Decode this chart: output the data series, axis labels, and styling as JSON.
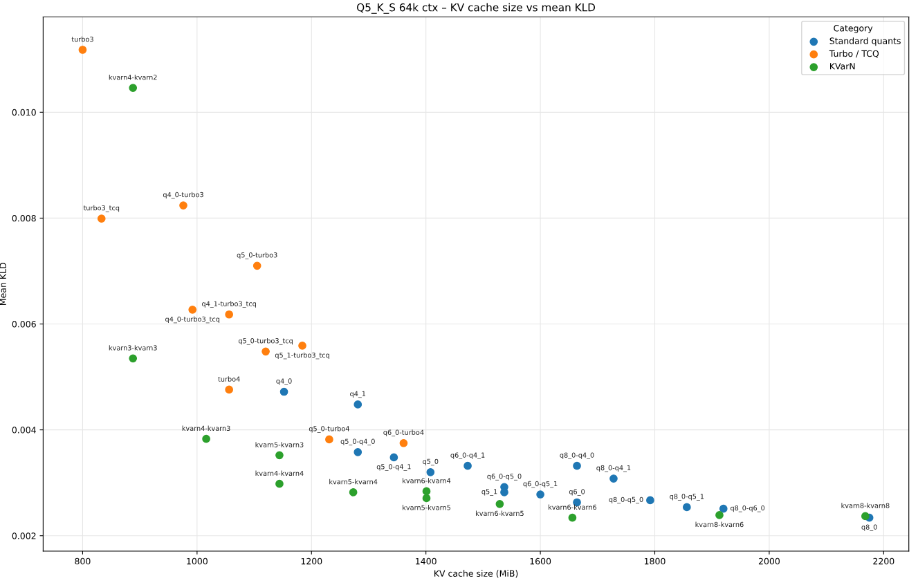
{
  "chart_data": {
    "type": "scatter",
    "title": "Q5_K_S 64k ctx – KV cache size vs mean KLD",
    "xlabel": "KV cache size (MiB)",
    "ylabel": "Mean KLD",
    "legend_title": "Category",
    "legend": "top right",
    "grid": true,
    "marker": "circle",
    "xlim": [
      731,
      2244
    ],
    "xticks": [
      800,
      1000,
      1200,
      1400,
      1600,
      1800,
      2000,
      2200
    ],
    "ylim": [
      0.00171,
      0.0118
    ],
    "yticks": [
      {
        "value": 0.002,
        "label": "0.002"
      },
      {
        "value": 0.004,
        "label": "0.004"
      },
      {
        "value": 0.006,
        "label": "0.006"
      },
      {
        "value": 0.008,
        "label": "0.008"
      },
      {
        "value": 0.01,
        "label": "0.010"
      }
    ],
    "series": [
      {
        "name": "Standard quants",
        "color": "#1f77b4",
        "x": [
          1152,
          1281,
          1281,
          1344,
          1408,
          1473,
          1537,
          1537,
          1600,
          1664,
          1664,
          1728,
          1792,
          1856,
          1920,
          2175
        ],
        "values": [
          0.00472,
          0.00448,
          0.00358,
          0.00348,
          0.0032,
          0.00332,
          0.00292,
          0.00282,
          0.00278,
          0.00332,
          0.00263,
          0.00308,
          0.00267,
          0.00254,
          0.00251,
          0.00234
        ]
      },
      {
        "name": "Turbo / TCQ",
        "color": "#ff7f0e",
        "x": [
          800,
          833,
          976,
          1105,
          992,
          1056,
          1120,
          1184,
          1056,
          1231,
          1361
        ],
        "values": [
          0.01118,
          0.00799,
          0.00824,
          0.0071,
          0.00627,
          0.00618,
          0.00548,
          0.00559,
          0.00476,
          0.00382,
          0.00375
        ]
      },
      {
        "name": "KVarN",
        "color": "#2ca02c",
        "x": [
          888,
          888,
          1016,
          1144,
          1144,
          1273,
          1401,
          1401,
          1529,
          1656,
          1913,
          2168
        ],
        "values": [
          0.01046,
          0.00535,
          0.00383,
          0.00352,
          0.00298,
          0.00282,
          0.00284,
          0.00271,
          0.0026,
          0.00234,
          0.00239,
          0.00237
        ]
      }
    ],
    "annotations": [
      {
        "text": "q4_0",
        "x": 1152,
        "y": 0.00472
      },
      {
        "text": "q4_1",
        "x": 1281,
        "y": 0.00448
      },
      {
        "text": "q5_0-q4_0",
        "x": 1281,
        "y": 0.00358
      },
      {
        "text": "q5_0-q4_1",
        "x": 1344,
        "y": 0.00348
      },
      {
        "text": "q5_0",
        "x": 1408,
        "y": 0.0032
      },
      {
        "text": "q6_0-q4_1",
        "x": 1473,
        "y": 0.00332
      },
      {
        "text": "q6_0-q5_0",
        "x": 1537,
        "y": 0.00292
      },
      {
        "text": "q5_1",
        "x": 1537,
        "y": 0.00282
      },
      {
        "text": "q6_0-q5_1",
        "x": 1600,
        "y": 0.00278
      },
      {
        "text": "q8_0-q4_0",
        "x": 1664,
        "y": 0.00332
      },
      {
        "text": "q6_0",
        "x": 1664,
        "y": 0.00263
      },
      {
        "text": "q8_0-q4_1",
        "x": 1728,
        "y": 0.00308
      },
      {
        "text": "q8_0-q5_0",
        "x": 1792,
        "y": 0.00267
      },
      {
        "text": "q8_0-q5_1",
        "x": 1856,
        "y": 0.00254
      },
      {
        "text": "q8_0-q6_0",
        "x": 1920,
        "y": 0.00251
      },
      {
        "text": "q8_0",
        "x": 2175,
        "y": 0.00234
      },
      {
        "text": "turbo3",
        "x": 800,
        "y": 0.01118
      },
      {
        "text": "turbo3_tcq",
        "x": 833,
        "y": 0.00799
      },
      {
        "text": "q4_0-turbo3",
        "x": 976,
        "y": 0.00824
      },
      {
        "text": "q5_0-turbo3",
        "x": 1105,
        "y": 0.0071
      },
      {
        "text": "q4_0-turbo3_tcq",
        "x": 992,
        "y": 0.00627
      },
      {
        "text": "q4_1-turbo3_tcq",
        "x": 1056,
        "y": 0.00618
      },
      {
        "text": "q5_0-turbo3_tcq",
        "x": 1120,
        "y": 0.00548
      },
      {
        "text": "q5_1-turbo3_tcq",
        "x": 1184,
        "y": 0.00559
      },
      {
        "text": "turbo4",
        "x": 1056,
        "y": 0.00476
      },
      {
        "text": "q5_0-turbo4",
        "x": 1231,
        "y": 0.00382
      },
      {
        "text": "q6_0-turbo4",
        "x": 1361,
        "y": 0.00375
      },
      {
        "text": "kvarn4-kvarn2",
        "x": 888,
        "y": 0.01046
      },
      {
        "text": "kvarn3-kvarn3",
        "x": 888,
        "y": 0.00535
      },
      {
        "text": "kvarn4-kvarn3",
        "x": 1016,
        "y": 0.00383
      },
      {
        "text": "kvarn5-kvarn3",
        "x": 1144,
        "y": 0.00352
      },
      {
        "text": "kvarn4-kvarn4",
        "x": 1144,
        "y": 0.00298
      },
      {
        "text": "kvarn5-kvarn4",
        "x": 1273,
        "y": 0.00282
      },
      {
        "text": "kvarn6-kvarn4",
        "x": 1401,
        "y": 0.00284
      },
      {
        "text": "kvarn5-kvarn5",
        "x": 1401,
        "y": 0.00271
      },
      {
        "text": "kvarn6-kvarn5",
        "x": 1529,
        "y": 0.0026
      },
      {
        "text": "kvarn6-kvarn6",
        "x": 1656,
        "y": 0.00234
      },
      {
        "text": "kvarn8-kvarn6",
        "x": 1913,
        "y": 0.00239
      },
      {
        "text": "kvarn8-kvarn8",
        "x": 2168,
        "y": 0.00237
      }
    ]
  }
}
